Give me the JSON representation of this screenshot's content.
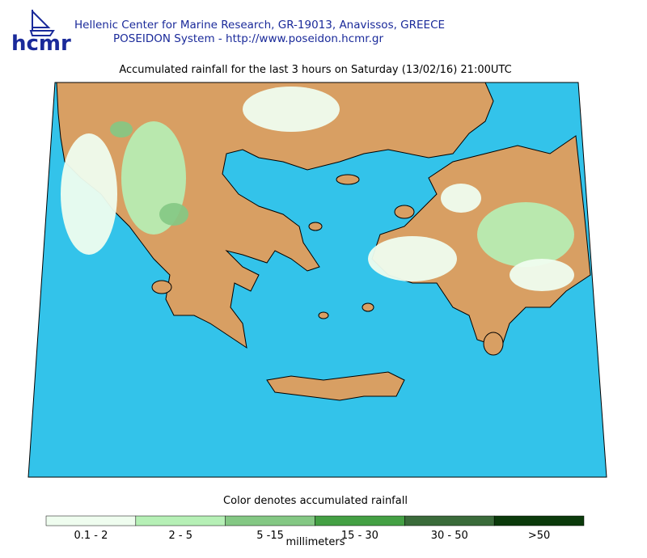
{
  "header": {
    "logo": "hcmr",
    "line1": "Hellenic Center for Marine Research, GR-19013, Anavissos, GREECE",
    "line2": "POSEIDON System - http://www.poseidon.hcmr.gr"
  },
  "title": "Accumulated rainfall for the last 3 hours on Saturday (13/02/16) 21:00UTC",
  "legend": {
    "caption": "Color denotes accumulated rainfall",
    "unit": "millimeters",
    "items": [
      {
        "label": "0.1 - 2",
        "color": "#effdef"
      },
      {
        "label": "2 - 5",
        "color": "#b6f0b6"
      },
      {
        "label": "5 -15",
        "color": "#84c884"
      },
      {
        "label": "15 - 30",
        "color": "#44a044"
      },
      {
        "label": "30 - 50",
        "color": "#3a6b3a"
      },
      {
        "label": ">50",
        "color": "#0b3a0b"
      }
    ]
  }
}
